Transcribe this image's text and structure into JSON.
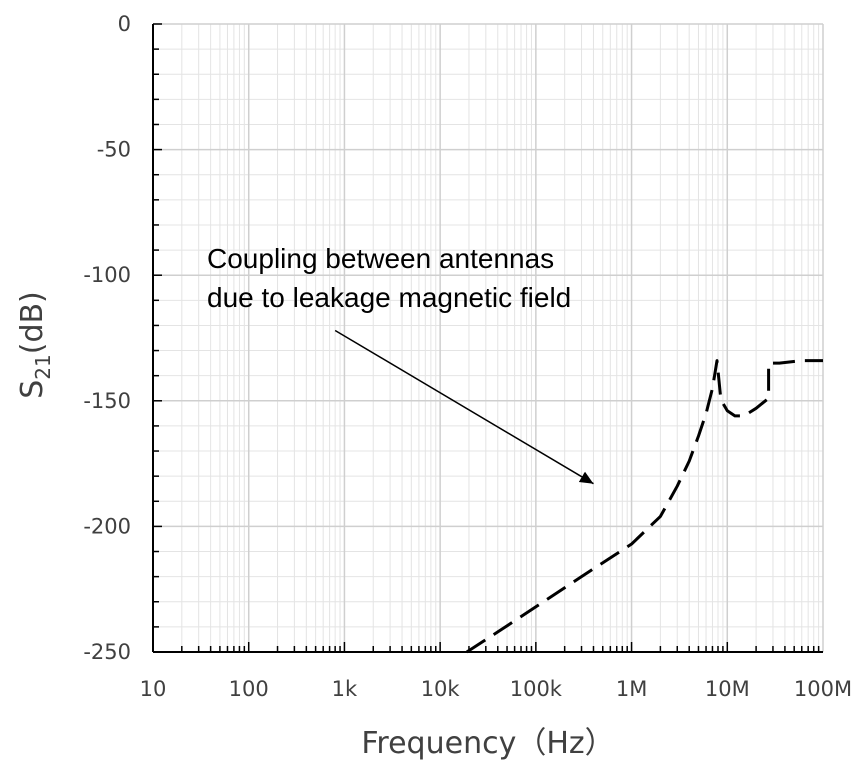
{
  "chart_data": {
    "type": "line",
    "title": "",
    "xlabel": "Frequency（Hz）",
    "ylabel_main": "S",
    "ylabel_sub": "21",
    "ylabel_rest": "(dB)",
    "x_scale": "log",
    "xlim": [
      10,
      100000000
    ],
    "ylim": [
      -250,
      0
    ],
    "x_ticks": [
      {
        "value": 10,
        "label": "10"
      },
      {
        "value": 100,
        "label": "100"
      },
      {
        "value": 1000,
        "label": "1k"
      },
      {
        "value": 10000,
        "label": "10k"
      },
      {
        "value": 100000,
        "label": "100k"
      },
      {
        "value": 1000000,
        "label": "1M"
      },
      {
        "value": 10000000,
        "label": "10M"
      },
      {
        "value": 100000000,
        "label": "100M"
      }
    ],
    "y_ticks": [
      {
        "value": 0,
        "label": "0"
      },
      {
        "value": -50,
        "label": "-50"
      },
      {
        "value": -100,
        "label": "-100"
      },
      {
        "value": -150,
        "label": "-150"
      },
      {
        "value": -200,
        "label": "-200"
      },
      {
        "value": -250,
        "label": "-250"
      }
    ],
    "grid": true,
    "series": [
      {
        "line_style": "dashed",
        "color": "#000000",
        "x": [
          19000,
          40000,
          100000,
          300000,
          1000000,
          2000000,
          3000000,
          4000000,
          5000000,
          6000000,
          7000000,
          7800000,
          8100000,
          8500000,
          9000000,
          10000000,
          12000000,
          15000000,
          20000000,
          25000000,
          27000000,
          27000000,
          35000000,
          60000000,
          100000000
        ],
        "y": [
          -250,
          -242,
          -232,
          -220,
          -207,
          -196,
          -184,
          -174,
          -164,
          -155,
          -145,
          -134,
          -140,
          -148,
          -151,
          -154,
          -156,
          -156,
          -153,
          -150,
          -149,
          -135,
          -135,
          -134,
          -134
        ]
      }
    ],
    "annotation": {
      "line1": "Coupling between antennas",
      "line2": "due to leakage magnetic field",
      "arrow_from": {
        "x": 800,
        "y": -122
      },
      "arrow_to": {
        "x": 400000,
        "y": -183
      }
    }
  }
}
